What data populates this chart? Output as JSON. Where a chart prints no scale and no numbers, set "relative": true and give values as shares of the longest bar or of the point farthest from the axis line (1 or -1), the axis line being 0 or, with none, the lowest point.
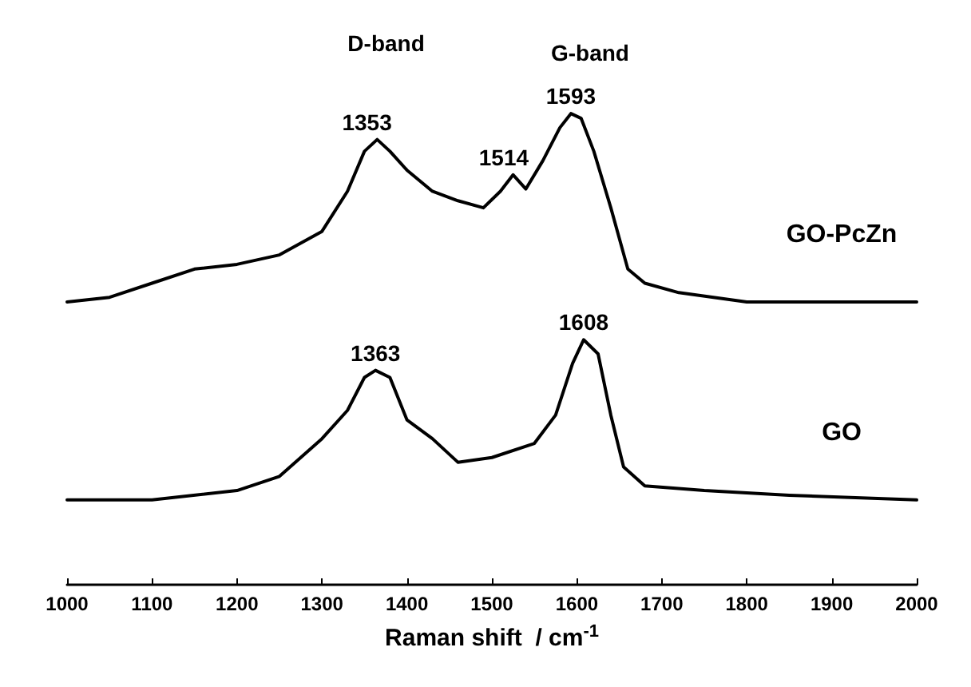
{
  "chart_data": {
    "type": "line",
    "relative": true,
    "xlabel": "Raman shift  / cm$^{-1}$",
    "xlim": [
      1000,
      2000
    ],
    "xticks": [
      1000,
      1100,
      1200,
      1300,
      1400,
      1500,
      1600,
      1700,
      1800,
      1900,
      2000
    ],
    "tick_labels": "x",
    "grid": false,
    "legend": false,
    "marker": "none",
    "line_style": "solid",
    "series": [
      {
        "name": "GO-PcZn",
        "color": "#000000",
        "x": [
          1000,
          1050,
          1100,
          1150,
          1200,
          1250,
          1300,
          1330,
          1350,
          1365,
          1380,
          1400,
          1430,
          1460,
          1490,
          1510,
          1525,
          1540,
          1560,
          1580,
          1593,
          1605,
          1620,
          1640,
          1660,
          1680,
          1720,
          1800,
          1900,
          2000
        ],
        "values": [
          0.6,
          0.61,
          0.64,
          0.67,
          0.68,
          0.7,
          0.75,
          0.835,
          0.92,
          0.945,
          0.92,
          0.88,
          0.835,
          0.815,
          0.8,
          0.835,
          0.87,
          0.84,
          0.9,
          0.97,
          1,
          0.99,
          0.92,
          0.8,
          0.67,
          0.64,
          0.62,
          0.6,
          0.6,
          0.6
        ]
      },
      {
        "name": "GO",
        "color": "#000000",
        "x": [
          1000,
          1100,
          1200,
          1250,
          1300,
          1330,
          1350,
          1363,
          1380,
          1400,
          1430,
          1460,
          1500,
          1550,
          1575,
          1595,
          1608,
          1625,
          1640,
          1655,
          1680,
          1750,
          1850,
          2000
        ],
        "values": [
          0.18,
          0.18,
          0.2,
          0.23,
          0.31,
          0.37,
          0.44,
          0.455,
          0.44,
          0.35,
          0.31,
          0.26,
          0.27,
          0.3,
          0.36,
          0.47,
          0.52,
          0.49,
          0.36,
          0.25,
          0.21,
          0.2,
          0.19,
          0.18
        ]
      }
    ],
    "annotations": [
      "D-band",
      "G-band",
      {
        "text": "1353",
        "x": 1353,
        "y": 0.945
      },
      {
        "text": "1514",
        "x": 1514,
        "y": 0.87
      },
      {
        "text": "1593",
        "x": 1593,
        "y": 1
      },
      {
        "text": "1363",
        "x": 1363,
        "y": 0.455
      },
      {
        "text": "1608",
        "x": 1608,
        "y": 0.52
      }
    ]
  }
}
